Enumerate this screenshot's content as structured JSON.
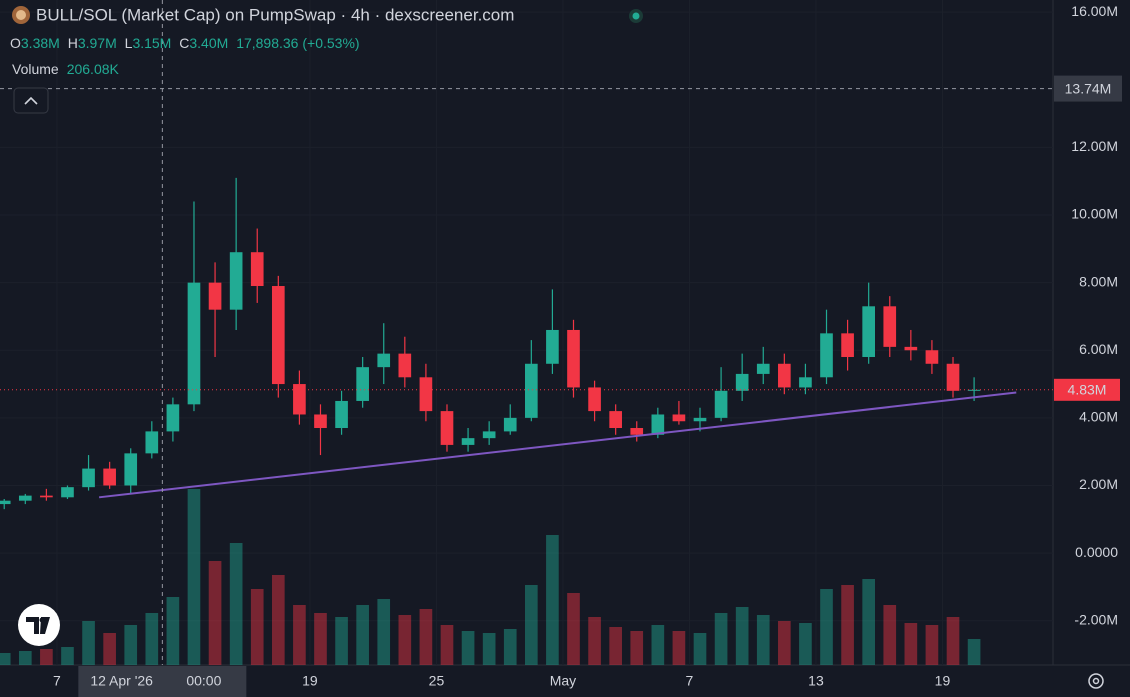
{
  "chart_data": {
    "type": "candlestick",
    "title": "BULL/SOL (Market Cap) on PumpSwap · 4h · dexscreener.com",
    "readout": {
      "o_key": "O",
      "open": "3.38M",
      "h_key": "H",
      "high": "3.97M",
      "l_key": "L",
      "low": "3.15M",
      "c_key": "C",
      "close": "3.40M",
      "change": "17,898.36 (+0.53%)",
      "volume_key": "Volume",
      "volume": "206.08K"
    },
    "up_color": "#22ab94",
    "down_color": "#f23645",
    "x": [
      4.5,
      5.5,
      6.5,
      7.5,
      8.5,
      9.5,
      10.5,
      11.5,
      12.5,
      13.5,
      14.5,
      15.5,
      16.5,
      17.5,
      18.5,
      19.5,
      20.5,
      21.5,
      22.5,
      23.5,
      24.5,
      25.5,
      26.5,
      27.5,
      28.5,
      29.5,
      30.5,
      31.5,
      32.5,
      33.5,
      34.5,
      35.5,
      36.5,
      37.5,
      38.5,
      39.5,
      40.5,
      41.5,
      42.5,
      43.5,
      44.5,
      45.5,
      46.5,
      47.5,
      48.5,
      49.5,
      50.5
    ],
    "open": [
      1.45,
      1.55,
      1.7,
      1.65,
      1.95,
      2.5,
      2.0,
      2.95,
      3.6,
      4.4,
      8.0,
      7.2,
      8.9,
      7.9,
      5.0,
      4.1,
      3.7,
      4.5,
      5.5,
      5.9,
      5.2,
      4.2,
      3.2,
      3.4,
      3.6,
      4.0,
      5.6,
      6.6,
      4.9,
      4.2,
      3.7,
      3.5,
      4.1,
      3.9,
      4.0,
      4.8,
      5.3,
      5.6,
      4.9,
      5.2,
      6.5,
      5.8,
      7.3,
      6.1,
      6.0,
      5.6,
      4.8
    ],
    "high": [
      1.6,
      1.75,
      1.9,
      2.0,
      2.9,
      2.7,
      3.1,
      3.9,
      4.6,
      10.4,
      8.6,
      11.1,
      9.6,
      8.2,
      5.4,
      4.4,
      4.8,
      5.8,
      6.8,
      6.4,
      5.6,
      4.4,
      3.7,
      3.9,
      4.4,
      6.3,
      7.8,
      6.9,
      5.1,
      4.4,
      3.9,
      4.3,
      4.5,
      4.3,
      5.5,
      5.9,
      6.1,
      5.9,
      5.6,
      7.2,
      6.9,
      8.0,
      7.6,
      6.6,
      6.3,
      5.8,
      5.2
    ],
    "low": [
      1.3,
      1.45,
      1.55,
      1.6,
      1.85,
      1.9,
      1.75,
      2.8,
      3.3,
      4.2,
      5.8,
      6.6,
      7.4,
      4.6,
      3.8,
      2.9,
      3.5,
      4.3,
      5.0,
      4.9,
      3.9,
      3.0,
      3.0,
      3.2,
      3.5,
      3.9,
      5.3,
      4.6,
      3.9,
      3.5,
      3.3,
      3.4,
      3.8,
      3.6,
      3.9,
      4.5,
      5.0,
      4.7,
      4.7,
      5.0,
      5.4,
      5.6,
      5.8,
      5.7,
      5.3,
      4.6,
      4.5
    ],
    "close": [
      1.55,
      1.7,
      1.65,
      1.95,
      2.5,
      2.0,
      2.95,
      3.6,
      4.4,
      8.0,
      7.2,
      8.9,
      7.9,
      5.0,
      4.1,
      3.7,
      4.5,
      5.5,
      5.9,
      5.2,
      4.2,
      3.2,
      3.4,
      3.6,
      4.0,
      5.6,
      6.6,
      4.9,
      4.2,
      3.7,
      3.5,
      4.1,
      3.9,
      4.0,
      4.8,
      5.3,
      5.6,
      4.9,
      5.2,
      6.5,
      5.8,
      7.3,
      6.1,
      6.0,
      5.6,
      4.8,
      4.83
    ],
    "volume": [
      60,
      70,
      80,
      90,
      220,
      160,
      200,
      260,
      340,
      880,
      520,
      610,
      380,
      450,
      300,
      260,
      240,
      300,
      330,
      250,
      280,
      200,
      170,
      160,
      180,
      400,
      650,
      360,
      240,
      190,
      170,
      200,
      170,
      160,
      260,
      290,
      250,
      220,
      210,
      380,
      400,
      430,
      300,
      210,
      200,
      240,
      130
    ],
    "vlim": [
      0,
      1000
    ],
    "xlim": [
      4.3,
      54.1
    ],
    "xticks": [
      7,
      19,
      25,
      {
        "value": 31,
        "label": "May"
      },
      {
        "value": 37,
        "label": "7"
      },
      {
        "value": 43,
        "label": "13"
      },
      {
        "value": 49,
        "label": "19"
      }
    ],
    "ylim": [
      -3.31,
      16.36
    ],
    "yticks": [
      {
        "value": 16,
        "label": "16.00M"
      },
      {
        "value": 12,
        "label": "12.00M"
      },
      {
        "value": 10,
        "label": "10.00M"
      },
      {
        "value": 8,
        "label": "8.00M"
      },
      {
        "value": 6,
        "label": "6.00M"
      },
      {
        "value": 4,
        "label": "4.00M"
      },
      {
        "value": 2,
        "label": "2.00M"
      },
      {
        "value": 0,
        "label": "0.0000"
      },
      {
        "value": -2,
        "label": "-2.00M"
      }
    ],
    "grid": true,
    "crosshair": {
      "x": 12,
      "x_label": "12 Apr '26",
      "time_label": "00:00",
      "y": 13.74,
      "y_label": "13.74M"
    },
    "last_price": {
      "value": 4.83,
      "label": "4.83M"
    },
    "trendline": {
      "x": [
        9,
        52.5
      ],
      "y": [
        1.65,
        4.75
      ],
      "color": "#7e57c2"
    }
  }
}
